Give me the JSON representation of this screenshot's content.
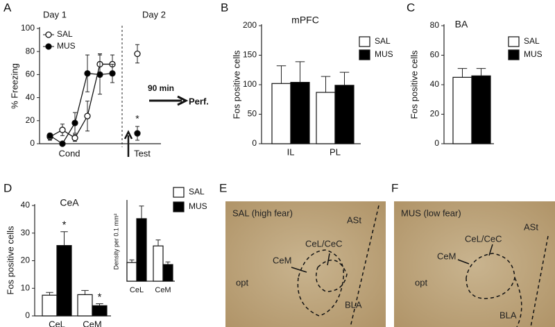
{
  "panel_letters": [
    "A",
    "B",
    "C",
    "D",
    "E",
    "F"
  ],
  "chart_data": [
    {
      "type": "line",
      "y_label": "% Freezing",
      "categories": [
        null,
        null,
        null,
        null,
        null,
        null,
        null,
        null
      ],
      "series": [
        {
          "name": "SAL",
          "color": "#ffffff",
          "values": [
            6,
            12,
            5,
            24,
            69,
            69,
            null,
            78
          ],
          "errors": [
            3,
            5,
            3,
            13,
            9,
            8,
            null,
            8
          ]
        },
        {
          "name": "MUS",
          "color": "#000000",
          "values": [
            7,
            0,
            18,
            61,
            60,
            61,
            null,
            9
          ],
          "errors": [
            2,
            0,
            9,
            16,
            17,
            8,
            null,
            6
          ]
        }
      ],
      "ylim": [
        0,
        100
      ],
      "yticks": [
        0,
        20,
        40,
        60,
        80,
        100
      ],
      "annotations": [
        "Day 1",
        "Day 2",
        "Cond",
        "Test",
        "90 min",
        "Perf.",
        "*"
      ]
    },
    {
      "type": "bar",
      "title": "mPFC",
      "y_label": "Fos  positive cells",
      "categories": [
        "IL",
        "PL"
      ],
      "series": [
        {
          "name": "SAL",
          "color": "#ffffff",
          "values": [
            102,
            87
          ],
          "errors": [
            30,
            27
          ]
        },
        {
          "name": "MUS",
          "color": "#000000",
          "values": [
            104,
            99
          ],
          "errors": [
            35,
            22
          ]
        }
      ],
      "ylim": [
        0,
        200
      ],
      "yticks": [
        0,
        50,
        100,
        150,
        200
      ]
    },
    {
      "type": "bar",
      "title": "BA",
      "y_label": "Fos  positive cells",
      "categories": [
        null
      ],
      "series": [
        {
          "name": "SAL",
          "color": "#ffffff",
          "values": [
            45
          ],
          "errors": [
            6
          ]
        },
        {
          "name": "MUS",
          "color": "#000000",
          "values": [
            46
          ],
          "errors": [
            5
          ]
        }
      ],
      "ylim": [
        0,
        80
      ],
      "yticks": [
        0,
        20,
        40,
        60,
        80
      ]
    },
    {
      "type": "bar",
      "title": "CeA",
      "y_label": "Fos positive cells",
      "categories": [
        "CeL",
        "CeM"
      ],
      "series": [
        {
          "name": "SAL",
          "color": "#ffffff",
          "values": [
            7.5,
            7.7
          ],
          "errors": [
            1,
            1.5
          ]
        },
        {
          "name": "MUS",
          "color": "#000000",
          "values": [
            25.5,
            3.7
          ],
          "errors": [
            5,
            0.7
          ]
        }
      ],
      "ylim": [
        0,
        40
      ],
      "yticks": [
        0,
        10,
        20,
        30,
        40
      ],
      "annotations": [
        "*",
        "*"
      ]
    },
    {
      "type": "bar",
      "y_label": "Density per 0.1 mm²",
      "categories": [
        "CeL",
        "CeM"
      ],
      "series": [
        {
          "name": "SAL",
          "color": "#ffffff",
          "values": [
            2.8,
            5.3
          ],
          "errors": [
            0.4,
            0.9
          ]
        },
        {
          "name": "MUS",
          "color": "#000000",
          "values": [
            9.4,
            2.5
          ],
          "errors": [
            1.9,
            0.4
          ]
        }
      ],
      "ylim": [
        0,
        12
      ]
    }
  ],
  "micrographs": [
    {
      "labels": [
        "SAL (high fear)",
        "ASt",
        "CeL/CeC",
        "CeM",
        "opt",
        "BLA"
      ]
    },
    {
      "labels": [
        "MUS (low fear)",
        "ASt",
        "CeL/CeC",
        "CeM",
        "opt",
        "BLA"
      ]
    }
  ]
}
